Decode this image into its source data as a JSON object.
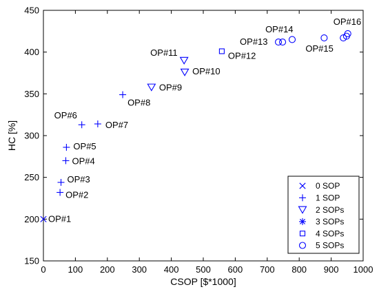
{
  "chart_data": {
    "type": "scatter",
    "xlabel": "CSOP [$*1000]",
    "ylabel": "HC [%]",
    "xlim": [
      0,
      1000
    ],
    "ylim": [
      150,
      450
    ],
    "xticks": [
      0,
      100,
      200,
      300,
      400,
      500,
      600,
      700,
      800,
      900,
      1000
    ],
    "yticks": [
      150,
      200,
      250,
      300,
      350,
      400,
      450
    ],
    "grid": false,
    "legend_position": "bottom-right",
    "color": "#0000ff",
    "series": [
      {
        "name": "0 SOP",
        "marker": "x",
        "points": [
          {
            "x": 0,
            "y": 200
          }
        ]
      },
      {
        "name": "1 SOP",
        "marker": "plus",
        "points": [
          {
            "x": 52,
            "y": 232
          },
          {
            "x": 55,
            "y": 244
          },
          {
            "x": 70,
            "y": 270
          },
          {
            "x": 72,
            "y": 286
          },
          {
            "x": 120,
            "y": 313
          },
          {
            "x": 170,
            "y": 314
          },
          {
            "x": 248,
            "y": 349
          }
        ]
      },
      {
        "name": "2 SOPs",
        "marker": "triangle-down",
        "points": [
          {
            "x": 338,
            "y": 358
          },
          {
            "x": 442,
            "y": 376
          },
          {
            "x": 440,
            "y": 390
          }
        ]
      },
      {
        "name": "3 SOPs",
        "marker": "asterisk",
        "points": []
      },
      {
        "name": "4 SOPs",
        "marker": "square",
        "points": [
          {
            "x": 558,
            "y": 401
          }
        ]
      },
      {
        "name": "5 SOPs",
        "marker": "circle",
        "points": [
          {
            "x": 735,
            "y": 412
          },
          {
            "x": 748,
            "y": 412
          },
          {
            "x": 778,
            "y": 415
          },
          {
            "x": 878,
            "y": 417
          },
          {
            "x": 938,
            "y": 417
          },
          {
            "x": 948,
            "y": 419
          },
          {
            "x": 952,
            "y": 422
          }
        ]
      }
    ],
    "annotations": [
      {
        "text": "OP#1",
        "x": 0,
        "y": 200
      },
      {
        "text": "OP#2",
        "x": 52,
        "y": 232
      },
      {
        "text": "OP#3",
        "x": 55,
        "y": 244
      },
      {
        "text": "OP#4",
        "x": 70,
        "y": 270
      },
      {
        "text": "OP#5",
        "x": 72,
        "y": 286
      },
      {
        "text": "OP#6",
        "x": 120,
        "y": 313
      },
      {
        "text": "OP#7",
        "x": 170,
        "y": 314
      },
      {
        "text": "OP#8",
        "x": 248,
        "y": 349
      },
      {
        "text": "OP#9",
        "x": 338,
        "y": 358
      },
      {
        "text": "OP#10",
        "x": 442,
        "y": 376
      },
      {
        "text": "OP#11",
        "x": 440,
        "y": 390
      },
      {
        "text": "OP#12",
        "x": 558,
        "y": 401
      },
      {
        "text": "OP#13",
        "x": 735,
        "y": 412
      },
      {
        "text": "OP#14",
        "x": 748,
        "y": 412
      },
      {
        "text": "OP#15",
        "x": 878,
        "y": 417
      },
      {
        "text": "OP#16",
        "x": 952,
        "y": 422
      }
    ]
  }
}
